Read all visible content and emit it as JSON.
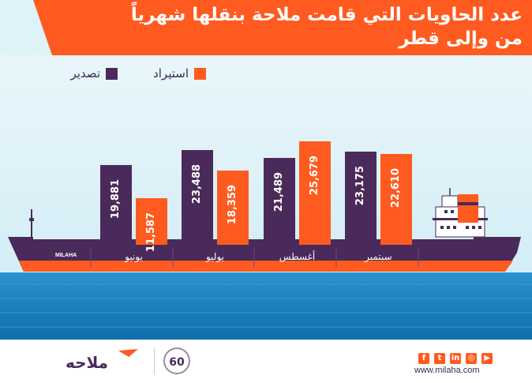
{
  "header": {
    "title_line1": "عدد الحاويات التي قامت ملاحة بنقلها شهرياً",
    "title_line2": "من وإلى قطر"
  },
  "legend": {
    "export_label": "تصدير",
    "import_label": "استيراد"
  },
  "colors": {
    "export": "#4a2a5a",
    "import": "#ff5a1f",
    "sky": "#dff2f8",
    "sea": "#1b82bf"
  },
  "chart_data": {
    "type": "bar",
    "categories": [
      "يونيو",
      "يوليو",
      "أغسطس",
      "سبتمبر"
    ],
    "series": [
      {
        "name": "تصدير",
        "values": [
          19881,
          23488,
          21489,
          23175
        ]
      },
      {
        "name": "استيراد",
        "values": [
          11587,
          18359,
          25679,
          22610
        ]
      }
    ],
    "value_labels": {
      "export": [
        "19,881",
        "23,488",
        "21,489",
        "23,175"
      ],
      "import": [
        "11,587",
        "18,359",
        "25,679",
        "22,610"
      ]
    }
  },
  "ship": {
    "name_label": "MILAHA"
  },
  "footer": {
    "url": "www.milaha.com",
    "logo_text": "ملاحه",
    "anniversary": "60",
    "social_icons": [
      "facebook-icon",
      "twitter-icon",
      "linkedin-icon",
      "instagram-icon",
      "youtube-icon"
    ]
  }
}
